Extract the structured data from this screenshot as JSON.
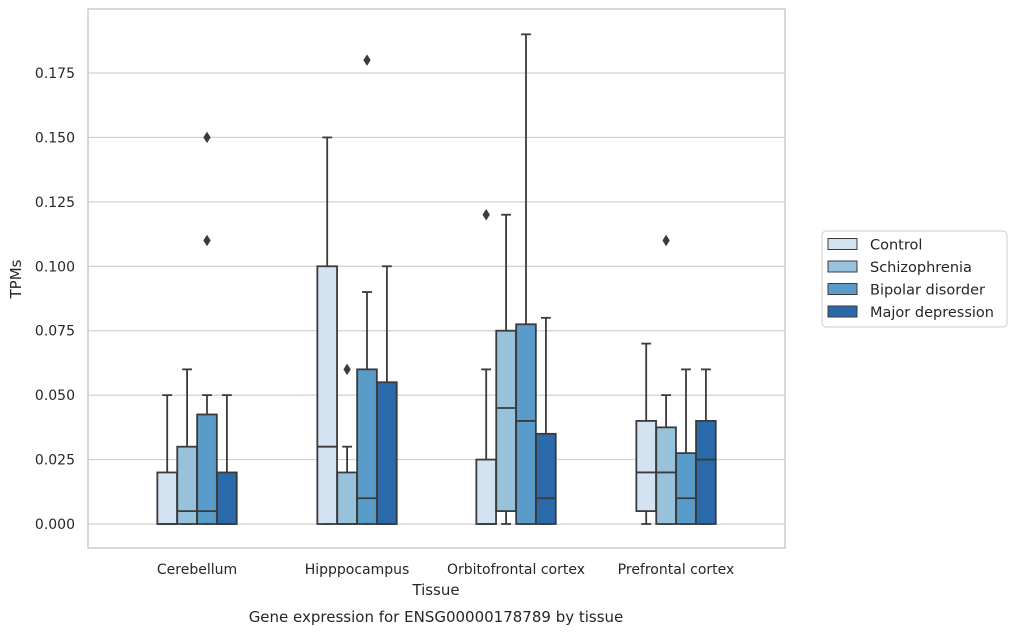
{
  "chart_data": {
    "type": "box",
    "caption": "Gene expression for ENSG00000178789 by tissue",
    "xlabel": "Tissue",
    "ylabel": "TPMs",
    "ylim": [
      -0.009,
      0.198
    ],
    "yticks": [
      0.0,
      0.025,
      0.05,
      0.075,
      0.1,
      0.125,
      0.15,
      0.175
    ],
    "ytick_labels": [
      "0.000",
      "0.025",
      "0.050",
      "0.075",
      "0.100",
      "0.125",
      "0.150",
      "0.175"
    ],
    "grid": "horizontal",
    "legend_position": "right",
    "categories": [
      "Cerebellum",
      "Hipppocampus",
      "Orbitofrontal cortex",
      "Prefrontal cortex"
    ],
    "series": [
      {
        "name": "Control",
        "color": "#d3e3f1",
        "boxes": [
          {
            "whislo": 0.0,
            "q1": 0.0,
            "med": 0.0,
            "q3": 0.02,
            "whishi": 0.05,
            "fliers": []
          },
          {
            "whislo": 0.0,
            "q1": 0.0,
            "med": 0.03,
            "q3": 0.1,
            "whishi": 0.15,
            "fliers": []
          },
          {
            "whislo": 0.0,
            "q1": 0.0,
            "med": 0.0,
            "q3": 0.025,
            "whishi": 0.06,
            "fliers": [
              0.12
            ]
          },
          {
            "whislo": 0.0,
            "q1": 0.005,
            "med": 0.02,
            "q3": 0.04,
            "whishi": 0.07,
            "fliers": []
          }
        ]
      },
      {
        "name": "Schizophrenia",
        "color": "#98c1dc",
        "boxes": [
          {
            "whislo": 0.0,
            "q1": 0.0,
            "med": 0.005,
            "q3": 0.03,
            "whishi": 0.06,
            "fliers": []
          },
          {
            "whislo": 0.0,
            "q1": 0.0,
            "med": 0.0,
            "q3": 0.02,
            "whishi": 0.03,
            "fliers": [
              0.06
            ]
          },
          {
            "whislo": 0.0,
            "q1": 0.005,
            "med": 0.045,
            "q3": 0.075,
            "whishi": 0.12,
            "fliers": []
          },
          {
            "whislo": 0.0,
            "q1": 0.0,
            "med": 0.02,
            "q3": 0.0375,
            "whishi": 0.05,
            "fliers": [
              0.11
            ]
          }
        ]
      },
      {
        "name": "Bipolar disorder",
        "color": "#5a9cc9",
        "boxes": [
          {
            "whislo": 0.0,
            "q1": 0.0,
            "med": 0.005,
            "q3": 0.0425,
            "whishi": 0.05,
            "fliers": [
              0.11,
              0.15
            ]
          },
          {
            "whislo": 0.0,
            "q1": 0.0,
            "med": 0.01,
            "q3": 0.06,
            "whishi": 0.09,
            "fliers": [
              0.18
            ]
          },
          {
            "whislo": 0.0,
            "q1": 0.0,
            "med": 0.04,
            "q3": 0.0775,
            "whishi": 0.19,
            "fliers": []
          },
          {
            "whislo": 0.0,
            "q1": 0.0,
            "med": 0.01,
            "q3": 0.0275,
            "whishi": 0.06,
            "fliers": []
          }
        ]
      },
      {
        "name": "Major depression",
        "color": "#2a6aab",
        "boxes": [
          {
            "whislo": 0.0,
            "q1": 0.0,
            "med": 0.0,
            "q3": 0.02,
            "whishi": 0.05,
            "fliers": []
          },
          {
            "whislo": 0.0,
            "q1": 0.0,
            "med": 0.0,
            "q3": 0.055,
            "whishi": 0.1,
            "fliers": []
          },
          {
            "whislo": 0.0,
            "q1": 0.0,
            "med": 0.01,
            "q3": 0.035,
            "whishi": 0.08,
            "fliers": []
          },
          {
            "whislo": 0.0,
            "q1": 0.0,
            "med": 0.025,
            "q3": 0.04,
            "whishi": 0.06,
            "fliers": []
          }
        ]
      }
    ]
  }
}
